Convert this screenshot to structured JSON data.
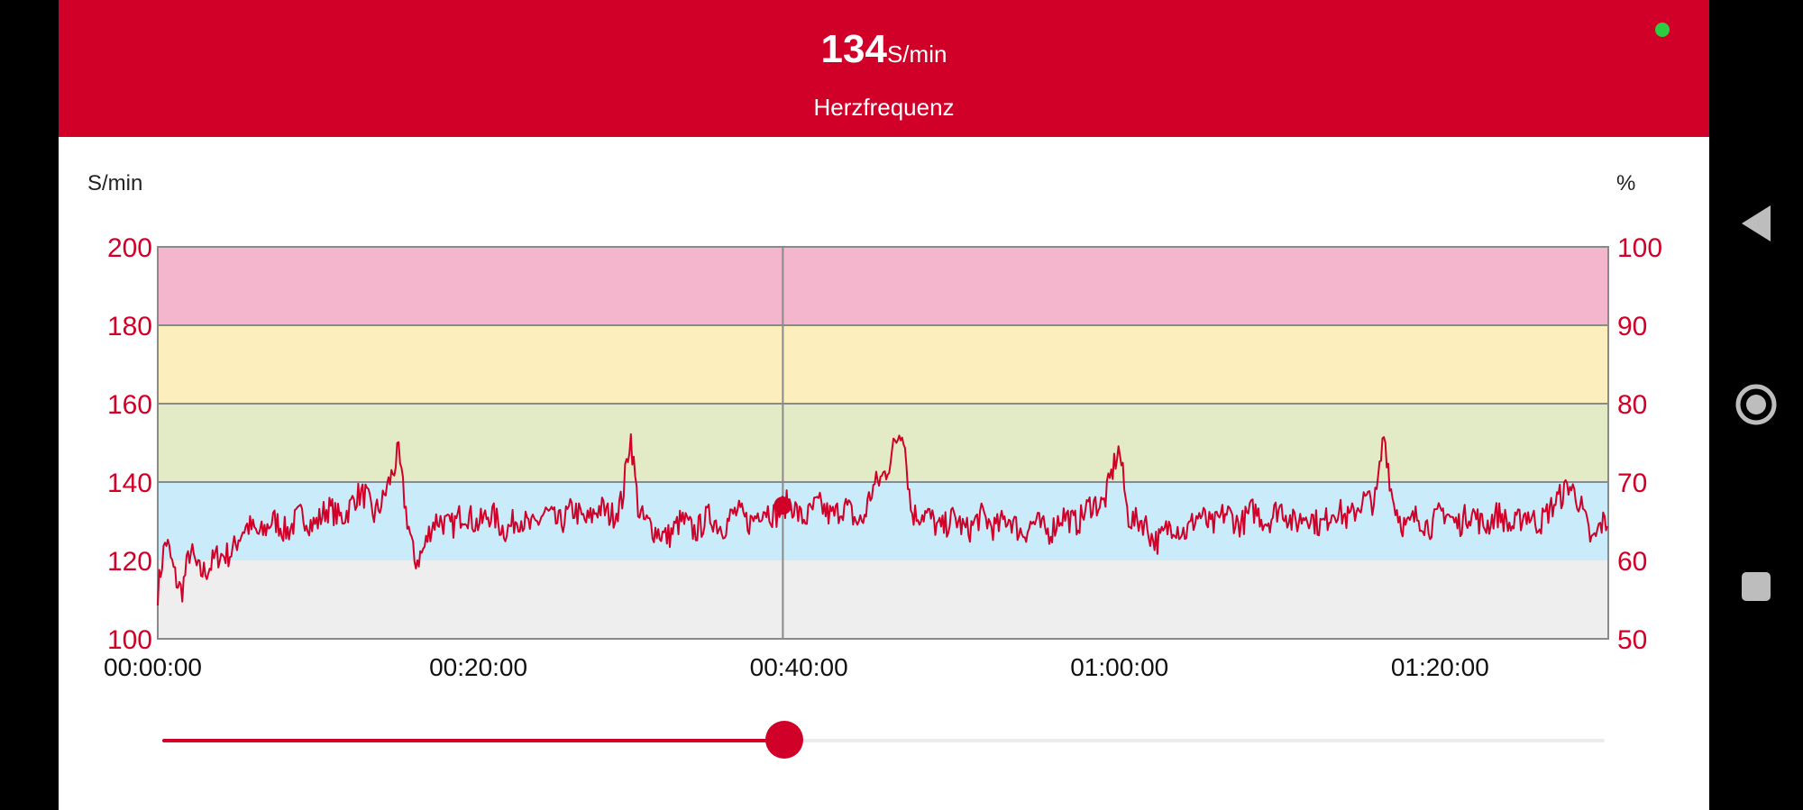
{
  "header": {
    "value": "134",
    "unit": "S/min",
    "label": "Herzfrequenz",
    "status_color": "#2ecc40"
  },
  "colors": {
    "accent": "#d10028",
    "zone_max": "#f4b6cc",
    "zone_high": "#fdeebd",
    "zone_mid": "#e3ebc6",
    "zone_low": "#c9ebfa",
    "zone_rest": "#edeeed"
  },
  "chart_data": {
    "type": "line",
    "ylabel": "S/min",
    "ylabel_right": "%",
    "ylim": [
      100,
      200
    ],
    "ylim_right": [
      50,
      100
    ],
    "yticks": [
      "200",
      "180",
      "160",
      "140",
      "120",
      "100"
    ],
    "yticks_right": [
      "100",
      "90",
      "80",
      "70",
      "60",
      "50"
    ],
    "xlabels": [
      "00:00:00",
      "00:20:00",
      "00:40:00",
      "01:00:00",
      "01:20:00"
    ],
    "x_range_minutes": [
      0,
      90.5
    ],
    "cursor_minutes": 39,
    "cursor_value": 134,
    "grid": true,
    "zones": [
      {
        "from": 180,
        "to": 200,
        "color": "#f4b6cc"
      },
      {
        "from": 160,
        "to": 180,
        "color": "#fdeebd"
      },
      {
        "from": 140,
        "to": 160,
        "color": "#e3ebc6"
      },
      {
        "from": 120,
        "to": 140,
        "color": "#c9ebfa"
      },
      {
        "from": 100,
        "to": 120,
        "color": "#edeeed"
      }
    ],
    "series": [
      {
        "color": "#d10028",
        "x_minutes": [
          0,
          0.5,
          1,
          1.5,
          2,
          2.5,
          3,
          4,
          5,
          6,
          8,
          10,
          12,
          13,
          13.5,
          14,
          15,
          15.5,
          16,
          17,
          18,
          20,
          22,
          25,
          28,
          29,
          29.5,
          30,
          31,
          32,
          35,
          38,
          39,
          40,
          42,
          44,
          45.5,
          46.5,
          47,
          48,
          50,
          52,
          55,
          58,
          59,
          60,
          60.5,
          62,
          65,
          68,
          70,
          72,
          75,
          76,
          76.5,
          77,
          78,
          80,
          85,
          87,
          88,
          89,
          89.5,
          90,
          90.5
        ],
        "values": [
          112,
          124,
          118,
          113,
          121,
          117,
          119,
          120,
          126,
          128,
          129,
          131,
          133,
          138,
          132,
          133,
          149,
          131,
          119,
          128,
          130,
          131,
          129,
          131,
          132,
          135,
          151,
          134,
          126,
          128,
          130,
          132,
          134,
          132,
          133,
          131,
          145,
          153,
          134,
          130,
          129,
          130,
          128,
          132,
          136,
          147,
          133,
          126,
          130,
          131,
          132,
          130,
          133,
          137,
          152,
          135,
          129,
          131,
          130,
          132,
          141,
          130,
          126,
          129,
          128
        ]
      }
    ]
  },
  "slider": {
    "value_fraction": 0.431
  }
}
